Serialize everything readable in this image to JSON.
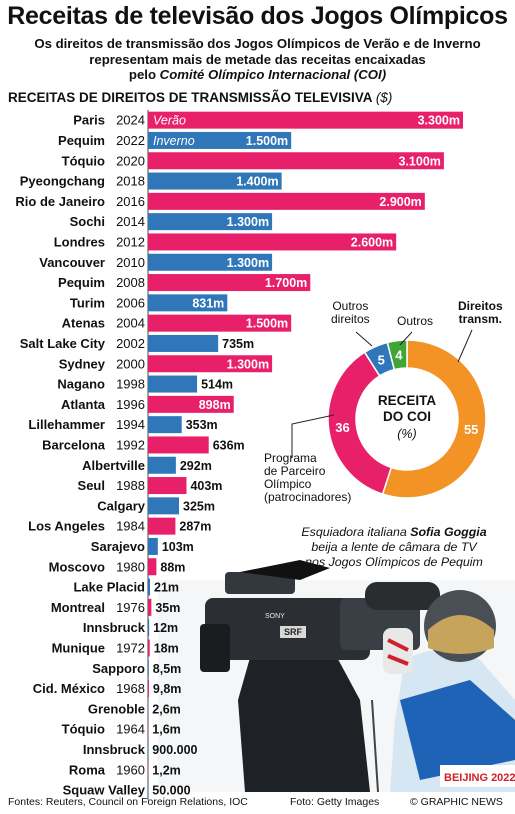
{
  "header": {
    "title": "Receitas de televisão dos Jogos Olímpicos",
    "subtitle_line1": "Os direitos de transmissão dos Jogos Olímpicos de Verão e de Inverno",
    "subtitle_line2": "representam mais de metade das receitas encaixadas",
    "subtitle_prefix": "pelo ",
    "subtitle_org": "Comité Olímpico Internacional (COI)"
  },
  "chart_data": [
    {
      "type": "bar",
      "title": "RECEITAS DE DIREITOS DE TRANSMISSÃO TELEVISIVA",
      "unit": "($)",
      "legend": {
        "summer": "Verão",
        "winter": "Inverno"
      },
      "colors": {
        "summer": "#e8206a",
        "winter": "#2f77b9"
      },
      "rows": [
        {
          "city": "Paris",
          "year": "2024",
          "season": "summer",
          "value": 3300,
          "label": "3.300m"
        },
        {
          "city": "Pequim",
          "year": "2022",
          "season": "winter",
          "value": 1500,
          "label": "1.500m"
        },
        {
          "city": "Tóquio",
          "year": "2020",
          "season": "summer",
          "value": 3100,
          "label": "3.100m"
        },
        {
          "city": "Pyeongchang",
          "year": "2018",
          "season": "winter",
          "value": 1400,
          "label": "1.400m"
        },
        {
          "city": "Rio de Janeiro",
          "year": "2016",
          "season": "summer",
          "value": 2900,
          "label": "2.900m"
        },
        {
          "city": "Sochi",
          "year": "2014",
          "season": "winter",
          "value": 1300,
          "label": "1.300m"
        },
        {
          "city": "Londres",
          "year": "2012",
          "season": "summer",
          "value": 2600,
          "label": "2.600m"
        },
        {
          "city": "Vancouver",
          "year": "2010",
          "season": "winter",
          "value": 1300,
          "label": "1.300m"
        },
        {
          "city": "Pequim",
          "year": "2008",
          "season": "summer",
          "value": 1700,
          "label": "1.700m"
        },
        {
          "city": "Turim",
          "year": "2006",
          "season": "winter",
          "value": 831,
          "label": "831m"
        },
        {
          "city": "Atenas",
          "year": "2004",
          "season": "summer",
          "value": 1500,
          "label": "1.500m"
        },
        {
          "city": "Salt Lake City",
          "year": "2002",
          "season": "winter",
          "value": 735,
          "label": "735m"
        },
        {
          "city": "Sydney",
          "year": "2000",
          "season": "summer",
          "value": 1300,
          "label": "1.300m"
        },
        {
          "city": "Nagano",
          "year": "1998",
          "season": "winter",
          "value": 514,
          "label": "514m"
        },
        {
          "city": "Atlanta",
          "year": "1996",
          "season": "summer",
          "value": 898,
          "label": "898m"
        },
        {
          "city": "Lillehammer",
          "year": "1994",
          "season": "winter",
          "value": 353,
          "label": "353m"
        },
        {
          "city": "Barcelona",
          "year": "1992",
          "season": "summer",
          "value": 636,
          "label": "636m"
        },
        {
          "city": "Albertville",
          "year": "",
          "season": "winter",
          "value": 292,
          "label": "292m"
        },
        {
          "city": "Seul",
          "year": "1988",
          "season": "summer",
          "value": 403,
          "label": "403m"
        },
        {
          "city": "Calgary",
          "year": "",
          "season": "winter",
          "value": 325,
          "label": "325m"
        },
        {
          "city": "Los Angeles",
          "year": "1984",
          "season": "summer",
          "value": 287,
          "label": "287m"
        },
        {
          "city": "Sarajevo",
          "year": "",
          "season": "winter",
          "value": 103,
          "label": "103m"
        },
        {
          "city": "Moscovo",
          "year": "1980",
          "season": "summer",
          "value": 88,
          "label": "88m"
        },
        {
          "city": "Lake Placid",
          "year": "",
          "season": "winter",
          "value": 21,
          "label": "21m"
        },
        {
          "city": "Montreal",
          "year": "1976",
          "season": "summer",
          "value": 35,
          "label": "35m"
        },
        {
          "city": "Innsbruck",
          "year": "",
          "season": "winter",
          "value": 12,
          "label": "12m"
        },
        {
          "city": "Munique",
          "year": "1972",
          "season": "summer",
          "value": 18,
          "label": "18m"
        },
        {
          "city": "Sapporo",
          "year": "",
          "season": "winter",
          "value": 8.5,
          "label": "8,5m"
        },
        {
          "city": "Cid. México",
          "year": "1968",
          "season": "summer",
          "value": 9.8,
          "label": "9,8m"
        },
        {
          "city": "Grenoble",
          "year": "",
          "season": "winter",
          "value": 2.6,
          "label": "2,6m"
        },
        {
          "city": "Tóquio",
          "year": "1964",
          "season": "summer",
          "value": 1.6,
          "label": "1,6m"
        },
        {
          "city": "Innsbruck",
          "year": "",
          "season": "winter",
          "value": 0.9,
          "label": "900.000"
        },
        {
          "city": "Roma",
          "year": "1960",
          "season": "summer",
          "value": 1.2,
          "label": "1,2m"
        },
        {
          "city": "Squaw Valley",
          "year": "",
          "season": "winter",
          "value": 0.05,
          "label": "50.000"
        }
      ]
    },
    {
      "type": "pie",
      "center_title": "RECEITA DO COI",
      "center_unit": "(%)",
      "slices": [
        {
          "name": "Direitos transm.",
          "value": 55,
          "label": "55",
          "color": "#f39325"
        },
        {
          "name": "Programa de Parceiro Olímpico (patrocinadores)",
          "value": 36,
          "label": "36",
          "color": "#e8206a"
        },
        {
          "name": "Outros direitos",
          "value": 5,
          "label": "5",
          "color": "#2f77b9"
        },
        {
          "name": "Outros",
          "value": 4,
          "label": "4",
          "color": "#3fa535"
        }
      ],
      "labels": {
        "outros_direitos_1": "Outros",
        "outros_direitos_2": "direitos",
        "outros": "Outros",
        "direitos_1": "Direitos",
        "direitos_2": "transm.",
        "programa_1": "Programa",
        "programa_2": "de Parceiro",
        "programa_3": "Olímpico",
        "programa_4": "(patrocinadores)"
      }
    }
  ],
  "photo": {
    "caption_line1": "Esquiadora italiana ",
    "caption_name": "Sofia Goggia",
    "caption_line2": "beija a lente de câmara de TV",
    "caption_line3": "nos Jogos Olímpicos de Pequim",
    "camera_brand": "SONY",
    "camera_badge": "SRF",
    "bib_text": "BEIJING 2022"
  },
  "footer": {
    "sources": "Fontes: Reuters, Council on Foreign Relations, IOC",
    "photo_credit": "Foto: Getty Images",
    "copyright": "© GRAPHIC NEWS"
  }
}
